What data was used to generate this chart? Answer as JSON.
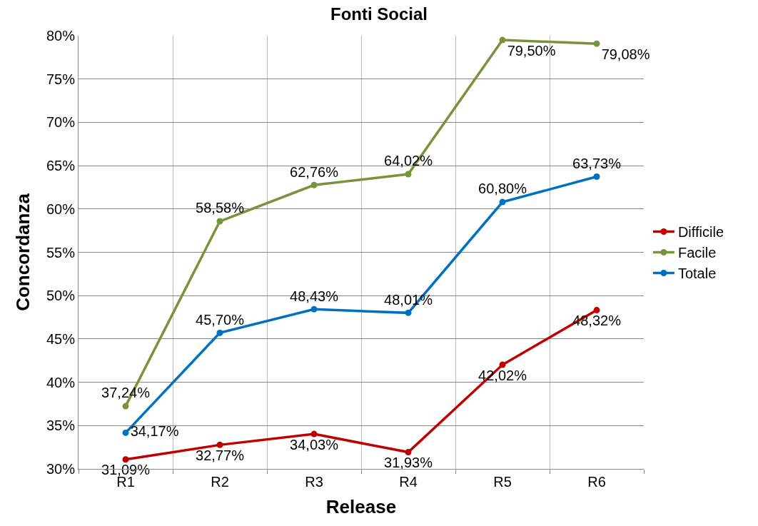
{
  "chart_data": {
    "type": "line",
    "title": "Fonti Social",
    "xlabel": "Release",
    "ylabel": "Concordanza",
    "categories": [
      "R1",
      "R2",
      "R3",
      "R4",
      "R5",
      "R6"
    ],
    "series": [
      {
        "name": "Difficile",
        "color": "#c00000",
        "values": [
          31.09,
          32.77,
          34.03,
          31.93,
          42.02,
          48.32
        ],
        "value_labels": [
          "31,09%",
          "32,77%",
          "34,03%",
          "31,93%",
          "42,02%",
          "48,32%"
        ]
      },
      {
        "name": "Facile",
        "color": "#77933c",
        "values": [
          37.24,
          58.58,
          62.76,
          64.02,
          79.5,
          79.08
        ],
        "value_labels": [
          "37,24%",
          "58,58%",
          "62,76%",
          "64,02%",
          "79,50%",
          "79,08%"
        ]
      },
      {
        "name": "Totale",
        "color": "#0070c0",
        "values": [
          34.17,
          45.7,
          48.43,
          48.01,
          60.8,
          63.73
        ],
        "value_labels": [
          "34,17%",
          "45,70%",
          "48,43%",
          "48,01%",
          "60,80%",
          "63,73%"
        ]
      }
    ],
    "ylim": [
      30,
      80
    ],
    "yticks": [
      {
        "value": 30,
        "label": "30%"
      },
      {
        "value": 35,
        "label": "35%"
      },
      {
        "value": 40,
        "label": "40%"
      },
      {
        "value": 45,
        "label": "45%"
      },
      {
        "value": 50,
        "label": "50%"
      },
      {
        "value": 55,
        "label": "55%"
      },
      {
        "value": 60,
        "label": "60%"
      },
      {
        "value": 65,
        "label": "65%"
      },
      {
        "value": 70,
        "label": "70%"
      },
      {
        "value": 75,
        "label": "75%"
      },
      {
        "value": 80,
        "label": "80%"
      }
    ],
    "grid": true,
    "legend": "right",
    "marker": "circle",
    "line_style": "solid"
  }
}
